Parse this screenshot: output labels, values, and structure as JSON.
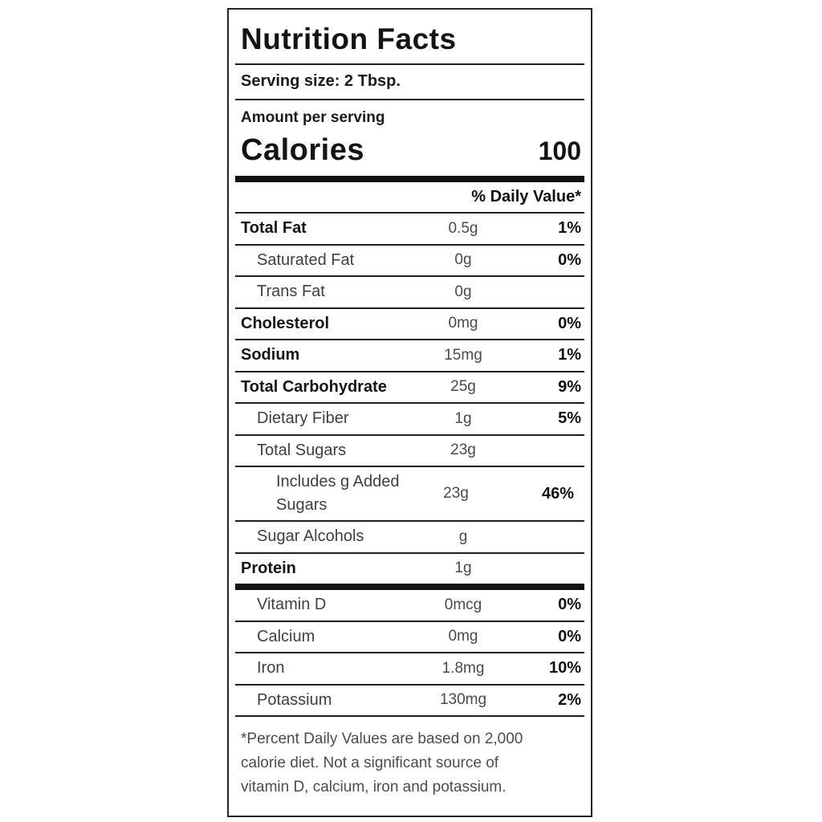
{
  "label": {
    "title": "Nutrition Facts",
    "serving_size": "Serving size: 2 Tbsp.",
    "amount_per_serving": "Amount per serving",
    "calories_label": "Calories",
    "calories_value": "100",
    "daily_value_header": "% Daily Value*",
    "rows": [
      {
        "name": "Total Fat",
        "amount": "0.5g",
        "dv": "1%"
      },
      {
        "name": "Saturated Fat",
        "amount": "0g",
        "dv": "0%"
      },
      {
        "name": "Trans Fat",
        "amount": "0g",
        "dv": ""
      },
      {
        "name": "Cholesterol",
        "amount": "0mg",
        "dv": "0%"
      },
      {
        "name": "Sodium",
        "amount": "15mg",
        "dv": "1%"
      },
      {
        "name": "Total Carbohydrate",
        "amount": "25g",
        "dv": "9%"
      },
      {
        "name": "Dietary Fiber",
        "amount": "1g",
        "dv": "5%"
      },
      {
        "name": "Total Sugars",
        "amount": "23g",
        "dv": ""
      },
      {
        "name": "Includes g Added Sugars",
        "amount": "23g",
        "dv": "46%"
      },
      {
        "name": "Sugar Alcohols",
        "amount": "g",
        "dv": ""
      },
      {
        "name": "Protein",
        "amount": "1g",
        "dv": ""
      }
    ],
    "vitamins": [
      {
        "name": "Vitamin D",
        "amount": "0mcg",
        "dv": "0%"
      },
      {
        "name": "Calcium",
        "amount": "0mg",
        "dv": "0%"
      },
      {
        "name": "Iron",
        "amount": "1.8mg",
        "dv": "10%"
      },
      {
        "name": "Potassium",
        "amount": "130mg",
        "dv": "2%"
      }
    ],
    "footnote_lines": [
      "*Percent Daily Values are based on 2,000",
      "calorie diet. Not a significant source of",
      "vitamin D, calcium, iron and potassium."
    ],
    "colors": {
      "text_dark": "#141414",
      "text_gray": "#4a4a4a",
      "divider": "#1f1f1f",
      "thick_bar": "#111111",
      "background": "#ffffff"
    }
  }
}
